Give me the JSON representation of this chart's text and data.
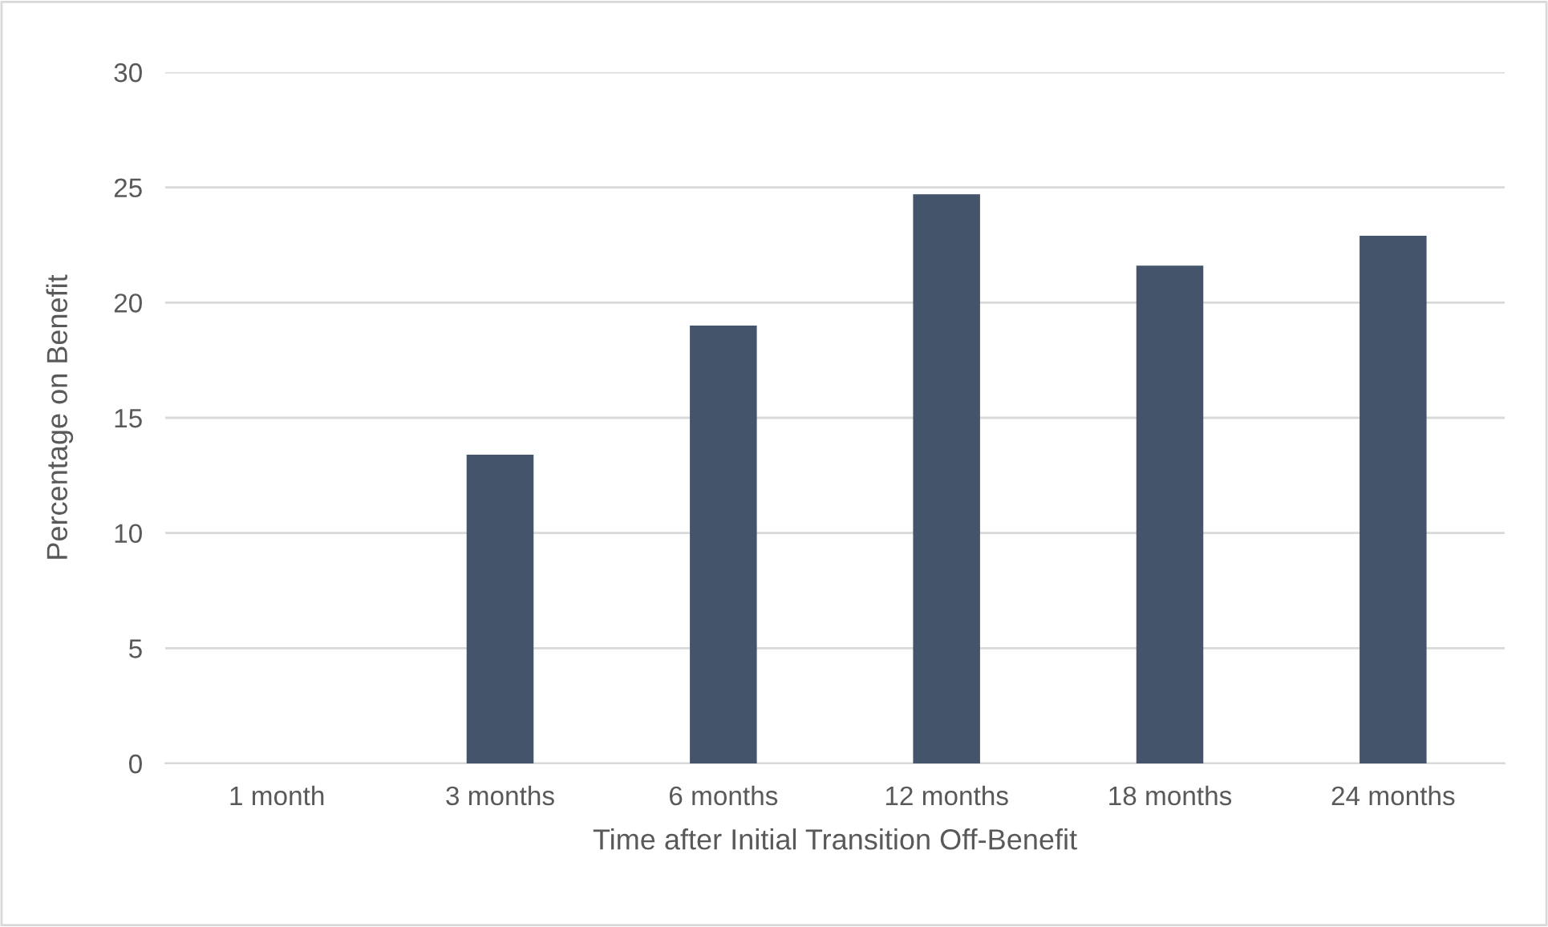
{
  "chart_data": {
    "type": "bar",
    "xlabel": "Time after Initial Transition Off-Benefit",
    "ylabel": "Percentage on Benefit",
    "categories": [
      "1 month",
      "3 months",
      "6 months",
      "12 months",
      "18 months",
      "24 months"
    ],
    "values": [
      0,
      13.4,
      19.0,
      24.7,
      21.6,
      22.9
    ],
    "color": "#44546a",
    "ylim": [
      0,
      30
    ],
    "yticks": [
      0,
      5,
      10,
      15,
      20,
      25,
      30
    ],
    "grid": "y"
  }
}
